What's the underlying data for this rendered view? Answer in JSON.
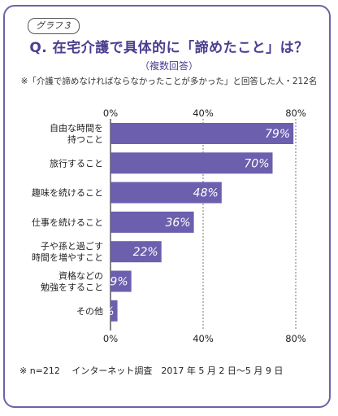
{
  "header": {
    "tag": "グラフ３",
    "title": "Q. 在宅介護で具体的に「諦めたこと」は？",
    "subtitle": "（複数回答）",
    "note": "※「介護で諦めなければならなかったことが多かった」と回答した人・212名"
  },
  "footer": {
    "note": "※ n=212　 インターネット調査　2017 年 5 月 2 日～5 月 9 日"
  },
  "colors": {
    "bar": "#6b5fae",
    "frame": "#6b63a6",
    "title": "#4b3f8f",
    "label_on_bar": "#ffffff"
  },
  "chart_data": {
    "type": "bar",
    "orientation": "horizontal",
    "categories": [
      "自由な時間を\n持つこと",
      "旅行すること",
      "趣味を続けること",
      "仕事を続けること",
      "子や孫と過ごす\n時間を増やすこと",
      "資格などの\n勉強をすること",
      "その他"
    ],
    "values": [
      79,
      70,
      48,
      36,
      22,
      9,
      3
    ],
    "value_labels": [
      "79%",
      "70%",
      "48%",
      "36%",
      "22%",
      "9%",
      "3%"
    ],
    "xlim": [
      0,
      80
    ],
    "ticks": [
      "0%",
      "40%",
      "80%"
    ],
    "tick_values": [
      0,
      40,
      80
    ],
    "grid": true
  }
}
